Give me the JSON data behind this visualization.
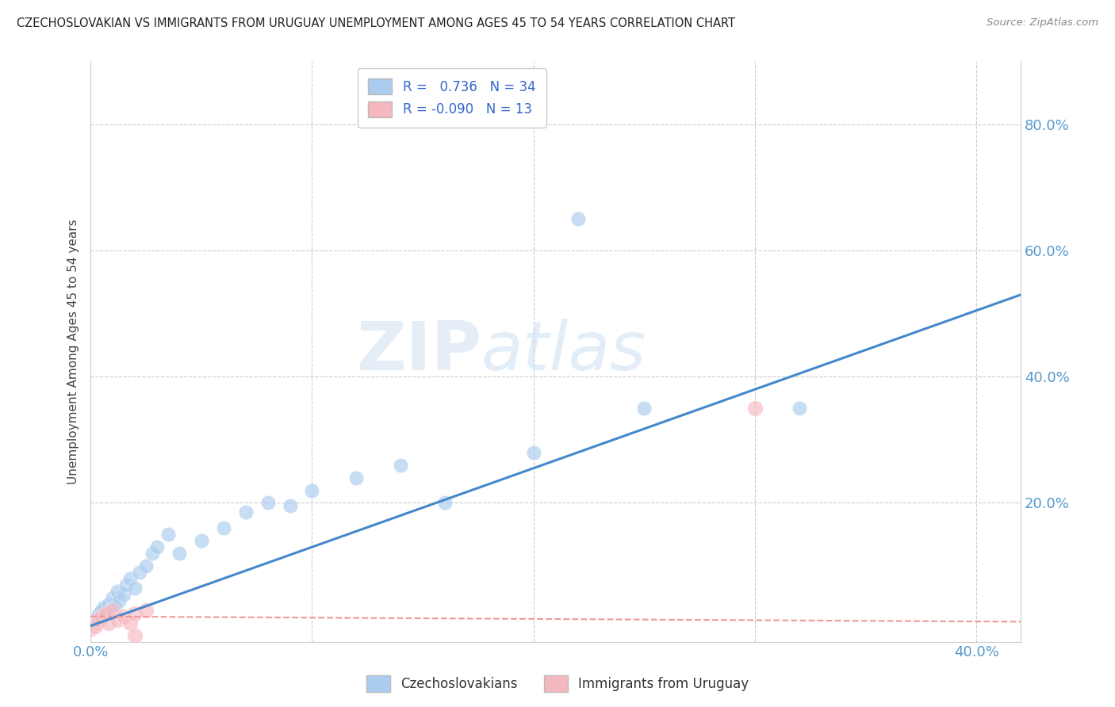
{
  "title": "CZECHOSLOVAKIAN VS IMMIGRANTS FROM URUGUAY UNEMPLOYMENT AMONG AGES 45 TO 54 YEARS CORRELATION CHART",
  "source": "Source: ZipAtlas.com",
  "ylabel": "Unemployment Among Ages 45 to 54 years",
  "xlim": [
    0.0,
    0.42
  ],
  "ylim": [
    -0.02,
    0.9
  ],
  "xtick_labels": [
    "0.0%",
    "",
    "",
    "",
    "40.0%"
  ],
  "xtick_vals": [
    0.0,
    0.1,
    0.2,
    0.3,
    0.4
  ],
  "ytick_labels": [
    "20.0%",
    "40.0%",
    "60.0%",
    "80.0%"
  ],
  "ytick_vals": [
    0.2,
    0.4,
    0.6,
    0.8
  ],
  "background_color": "#ffffff",
  "blue_color": "#aaccee",
  "pink_color": "#f5b8c0",
  "blue_line_color": "#4488cc",
  "pink_line_color": "#ee9999",
  "grid_color": "#cccccc",
  "czecho_points_x": [
    0.0,
    0.002,
    0.003,
    0.004,
    0.005,
    0.006,
    0.007,
    0.008,
    0.009,
    0.01,
    0.011,
    0.012,
    0.013,
    0.015,
    0.016,
    0.018,
    0.02,
    0.022,
    0.025,
    0.028,
    0.03,
    0.035,
    0.04,
    0.05,
    0.06,
    0.07,
    0.08,
    0.09,
    0.1,
    0.12,
    0.14,
    0.16,
    0.2,
    0.25
  ],
  "czecho_points_y": [
    0.01,
    0.015,
    0.02,
    0.025,
    0.03,
    0.035,
    0.025,
    0.04,
    0.03,
    0.05,
    0.035,
    0.06,
    0.045,
    0.055,
    0.07,
    0.08,
    0.065,
    0.09,
    0.1,
    0.12,
    0.13,
    0.15,
    0.12,
    0.14,
    0.16,
    0.185,
    0.2,
    0.195,
    0.22,
    0.24,
    0.26,
    0.2,
    0.28,
    0.35
  ],
  "czecho_outlier_x": [
    0.22
  ],
  "czecho_outlier_y": [
    0.65
  ],
  "czecho_right_x": [
    0.32
  ],
  "czecho_right_y": [
    0.35
  ],
  "uruguay_points_x": [
    0.0,
    0.002,
    0.003,
    0.004,
    0.005,
    0.007,
    0.008,
    0.01,
    0.012,
    0.015,
    0.018,
    0.02,
    0.025
  ],
  "uruguay_points_y": [
    0.0,
    0.005,
    0.01,
    0.015,
    0.02,
    0.025,
    0.01,
    0.03,
    0.015,
    0.02,
    0.01,
    0.025,
    0.03
  ],
  "uruguay_outlier_x": [
    0.02
  ],
  "uruguay_outlier_y": [
    -0.01
  ],
  "uruguay_right_x": [
    0.3
  ],
  "uruguay_right_y": [
    0.35
  ]
}
